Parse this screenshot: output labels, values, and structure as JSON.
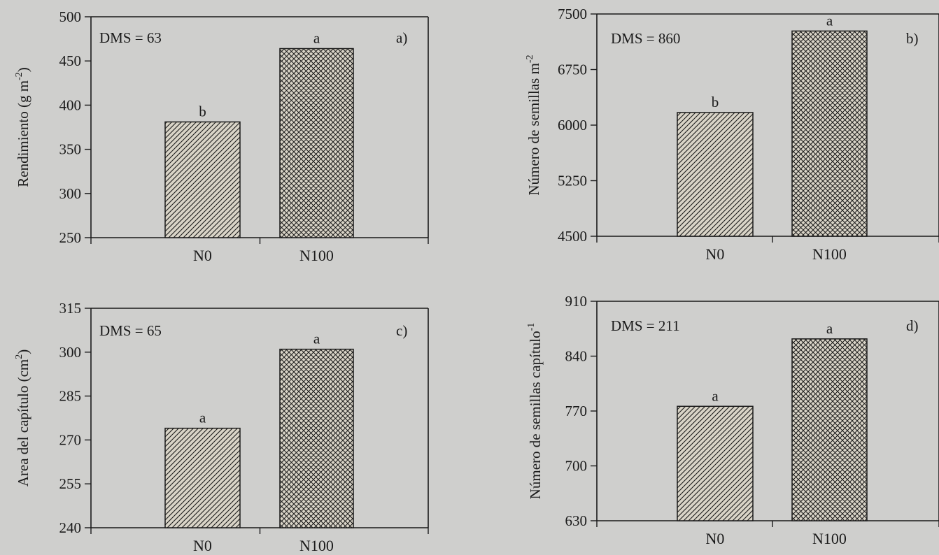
{
  "colors": {
    "background": "#cfcfcd",
    "ink": "#1a1a1a",
    "bar_fill": "#d9d4c7"
  },
  "chart_data": [
    {
      "panel": "a)",
      "type": "bar",
      "categories": [
        "N0",
        "N100"
      ],
      "values": [
        381,
        464
      ],
      "ylabel": "Rendimiento (g m",
      "ylabel_sup": "-2",
      "ylabel_end": ")",
      "ylim": [
        250,
        500
      ],
      "yticks": [
        "250",
        "300",
        "350",
        "400",
        "450",
        "500"
      ],
      "annotation": "DMS = 63",
      "significance_letters": [
        "b",
        "a"
      ],
      "patterns": [
        "hatch",
        "crosshatch"
      ]
    },
    {
      "panel": "b)",
      "type": "bar",
      "categories": [
        "N0",
        "N100"
      ],
      "values": [
        6170,
        7270
      ],
      "ylabel": "Número de semillas m",
      "ylabel_sup": "-2",
      "ylabel_end": "",
      "ylim": [
        4500,
        7500
      ],
      "yticks": [
        "4500",
        "5250",
        "6000",
        "6750",
        "7500"
      ],
      "annotation": "DMS = 860",
      "significance_letters": [
        "b",
        "a"
      ],
      "patterns": [
        "hatch",
        "crosshatch"
      ]
    },
    {
      "panel": "c)",
      "type": "bar",
      "categories": [
        "N0",
        "N100"
      ],
      "values": [
        274,
        301
      ],
      "ylabel": "Area del capítulo (cm",
      "ylabel_sup": "2",
      "ylabel_end": ")",
      "ylim": [
        240,
        315
      ],
      "yticks": [
        "240",
        "255",
        "270",
        "285",
        "300",
        "315"
      ],
      "annotation": "DMS = 65",
      "significance_letters": [
        "a",
        "a"
      ],
      "patterns": [
        "hatch",
        "crosshatch"
      ]
    },
    {
      "panel": "d)",
      "type": "bar",
      "categories": [
        "N0",
        "N100"
      ],
      "values": [
        776,
        862
      ],
      "ylabel": "Número de semillas capítulo",
      "ylabel_sup": "-1",
      "ylabel_end": "",
      "ylim": [
        630,
        910
      ],
      "yticks": [
        "630",
        "700",
        "770",
        "840",
        "910"
      ],
      "annotation": "DMS = 211",
      "significance_letters": [
        "a",
        "a"
      ],
      "patterns": [
        "hatch",
        "crosshatch"
      ]
    }
  ]
}
